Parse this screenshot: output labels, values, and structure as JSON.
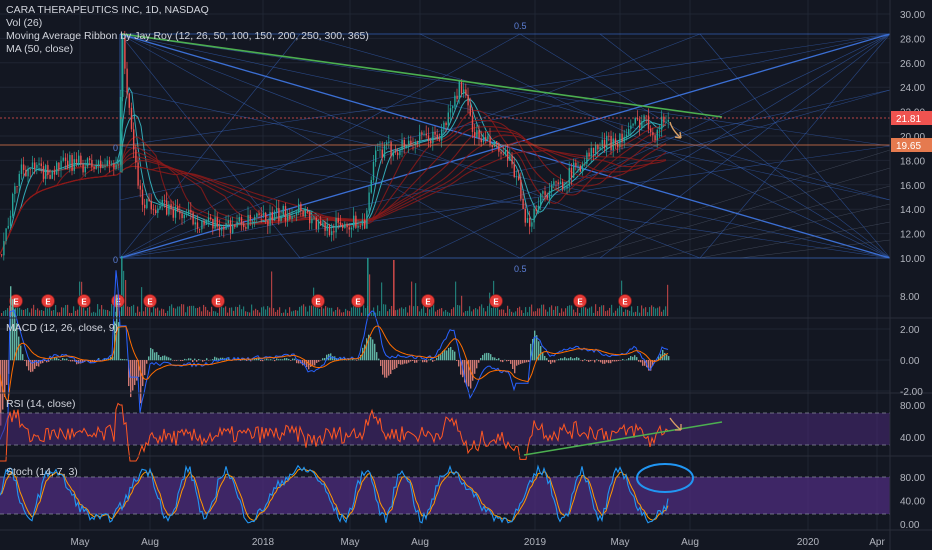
{
  "colors": {
    "background": "#131722",
    "grid": "#1f2533",
    "axis_text": "#b2b5be",
    "legend_text": "#d1d4dc",
    "candle_up": "#26a69a",
    "candle_down": "#ef5350",
    "fan_line": "#3b6fd4",
    "trend_green": "#4caf50",
    "ribbon_dark_red": "#8b1a1a",
    "ma_teal": "#37b9c5",
    "macd_blue": "#2962ff",
    "macd_signal": "#ff6d00",
    "rsi_line": "#ff5722",
    "stoch_k": "#2196f3",
    "stoch_d": "#ff9800",
    "band_fill": "#4a2a78",
    "price_badge_red": "#ef5350",
    "price_badge_orange": "#e57a4f",
    "earnings_marker": "#e53935",
    "annotation_arrow": "#d9a066",
    "stoch_circle": "#2196f3"
  },
  "chart_data": [
    {
      "type": "candlestick",
      "title": "CARA THERAPEUTICS INC, 1D, NASDAQ",
      "legend": [
        {
          "id": "vol",
          "text": "Vol (26)"
        },
        {
          "id": "ribbon",
          "text": "Moving Average Ribbon by Jay Roy (12, 26, 50, 100, 150, 200, 250, 300, 365)"
        },
        {
          "id": "ma",
          "text": "MA (50, close)"
        }
      ],
      "y_ticks": [
        "30.00",
        "28.00",
        "26.00",
        "24.00",
        "22.00",
        "20.00",
        "18.00",
        "16.00",
        "14.00",
        "12.00",
        "10.00",
        "8.00"
      ],
      "ylim": [
        10,
        30
      ],
      "price_badges": [
        {
          "value": "21.81"
        },
        {
          "value": "19.65"
        }
      ],
      "fan_labels": [
        "0.5",
        "0",
        "0",
        "0.5"
      ],
      "earnings_marker_label": "E",
      "earnings_count": 12,
      "approx_close": [
        {
          "period": "Mar 2017",
          "low": 9.6,
          "high": 11.0
        },
        {
          "period": "Apr 2017",
          "value": 18.0
        },
        {
          "period": "May 2017",
          "value": 17.3
        },
        {
          "period": "Jun 2017",
          "value": 17.5
        },
        {
          "period": "Jul 2017 peak",
          "value": 28.2
        },
        {
          "period": "Aug 2017",
          "value": 14.8
        },
        {
          "period": "Oct 2017",
          "value": 12.6
        },
        {
          "period": "Dec 2017",
          "value": 12.8
        },
        {
          "period": "Feb 2018",
          "value": 14.0
        },
        {
          "period": "Apr 2018",
          "value": 12.3
        },
        {
          "period": "May 2018",
          "value": 13.2
        },
        {
          "period": "Jul 2018",
          "value": 19.0
        },
        {
          "period": "Sep 2018 peak",
          "value": 24.3
        },
        {
          "period": "Nov 2018",
          "value": 18.0
        },
        {
          "period": "Jan 2019",
          "value": 12.3
        },
        {
          "period": "Feb 2019",
          "value": 16.0
        },
        {
          "period": "Apr 2019",
          "value": 19.0
        },
        {
          "period": "Jun 2019",
          "value": 22.0
        },
        {
          "period": "Jul 2019",
          "value": 20.5
        }
      ]
    },
    {
      "type": "line",
      "title": "MACD (12, 26, close, 9)",
      "y_ticks": [
        "2.00",
        "0.00",
        "-2.00"
      ],
      "ylim": [
        -2.5,
        2.5
      ]
    },
    {
      "type": "line",
      "title": "RSI (14, close)",
      "y_ticks": [
        "80.00",
        "40.00"
      ],
      "levels": [
        70,
        30
      ],
      "ylim": [
        15,
        95
      ]
    },
    {
      "type": "line",
      "title": "Stoch (14, 7, 3)",
      "y_ticks": [
        "80.00",
        "40.00",
        "0.00"
      ],
      "levels": [
        80,
        20
      ],
      "ylim": [
        0,
        100
      ]
    }
  ],
  "x_axis": {
    "labels": [
      "May",
      "Aug",
      "2018",
      "May",
      "Aug",
      "2019",
      "May",
      "Aug",
      "2020",
      "Apr"
    ]
  }
}
